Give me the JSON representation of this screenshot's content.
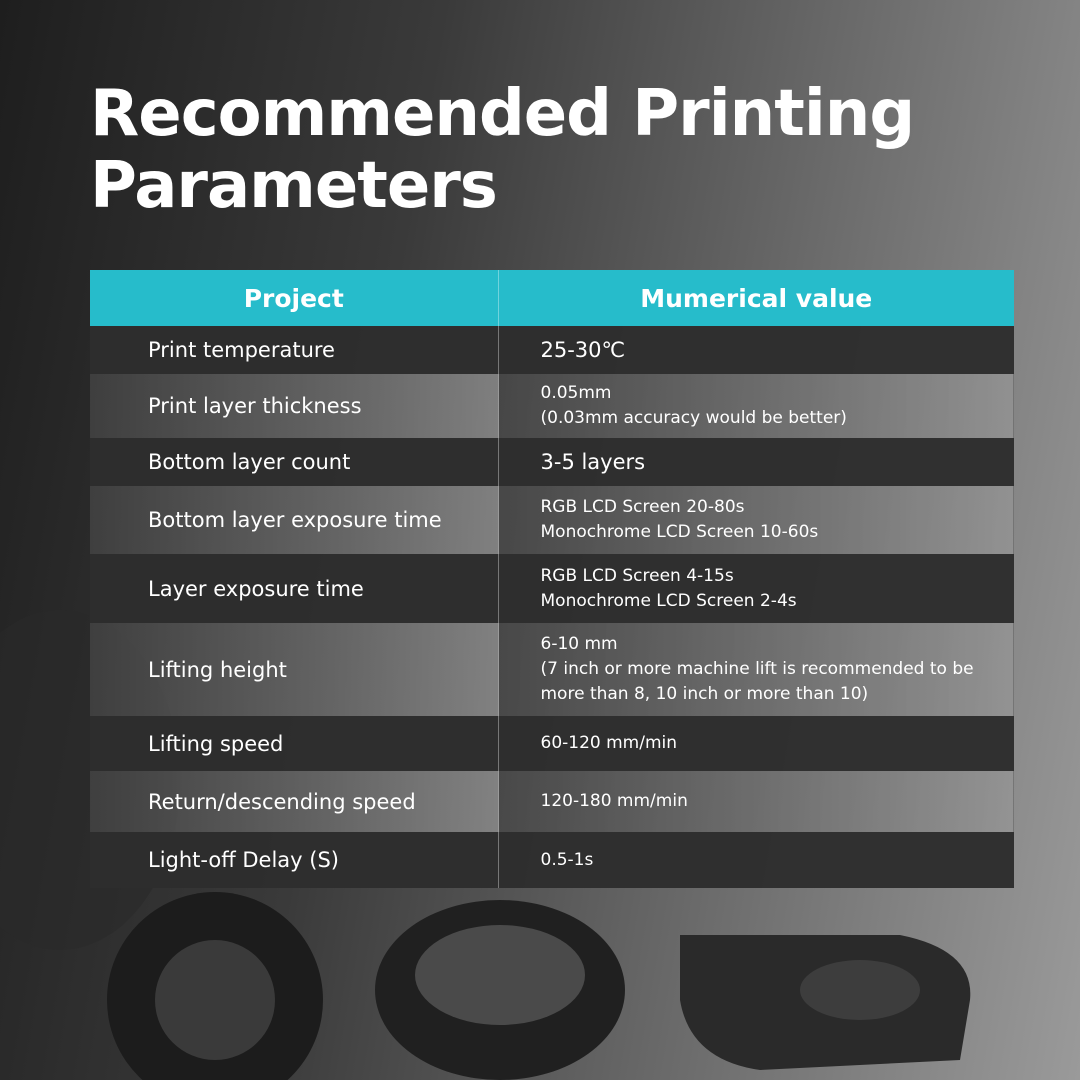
{
  "title": "Recommended Printing Parameters",
  "table": {
    "headers": [
      "Project",
      "Mumerical value"
    ],
    "rows": [
      {
        "key": "Print temperature",
        "value": [
          "25-30℃"
        ]
      },
      {
        "key": "Print layer thickness",
        "value": [
          "0.05mm",
          "(0.03mm accuracy would be better)"
        ]
      },
      {
        "key": "Bottom layer count",
        "value": [
          "3-5 layers"
        ]
      },
      {
        "key": "Bottom layer exposure time",
        "value": [
          "RGB LCD Screen 20-80s",
          "Monochrome LCD Screen 10-60s"
        ]
      },
      {
        "key": "Layer exposure time",
        "value": [
          "RGB LCD Screen 4-15s",
          "Monochrome LCD Screen 2-4s"
        ]
      },
      {
        "key": "Lifting height",
        "value": [
          "6-10 mm",
          "(7 inch or more machine lift is recommended to be",
          "more than 8, 10 inch or more than 10)"
        ]
      },
      {
        "key": "Lifting speed",
        "value": [
          "60-120 mm/min"
        ]
      },
      {
        "key": "Return/descending speed",
        "value": [
          "120-180 mm/min"
        ]
      },
      {
        "key": "Light-off Delay (S)",
        "value": [
          "0.5-1s"
        ]
      }
    ]
  },
  "colors": {
    "header": "#26bccb",
    "dark_row": "#2d2d2d"
  }
}
